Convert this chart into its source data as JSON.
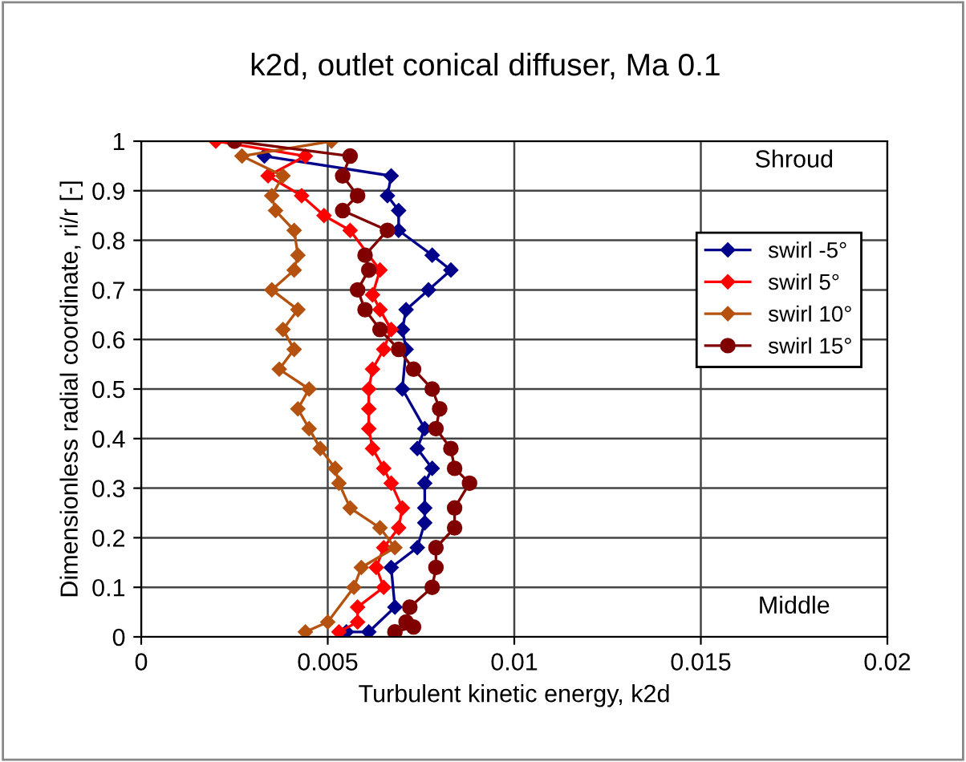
{
  "chart_data": {
    "type": "line",
    "title": "k2d, outlet conical diffuser, Ma 0.1",
    "xlabel": "Turbulent kinetic energy, k2d",
    "ylabel": "Dimensionless radial coordinate, ri/r [-]",
    "xlim": [
      0,
      0.02
    ],
    "xticks": [
      0,
      0.005,
      0.01,
      0.015,
      0.02
    ],
    "ylim": [
      0,
      1
    ],
    "yticks": [
      0,
      0.1,
      0.2,
      0.3,
      0.4,
      0.5,
      0.6,
      0.7,
      0.8,
      0.9,
      1
    ],
    "grid": true,
    "legend": "right",
    "annotations": [
      "Shroud",
      "Middle"
    ],
    "series": [
      {
        "name": "swirl -5°",
        "color": "#00008b",
        "marker": "diamond",
        "x": [
          0.0033,
          0.0067,
          0.0066,
          0.0069,
          0.0069,
          0.0078,
          0.0083,
          0.0077,
          0.0071,
          0.007,
          0.0071,
          0.007,
          0.0076,
          0.0074,
          0.0078,
          0.0076,
          0.0076,
          0.0076,
          0.0074,
          0.0067,
          0.0068,
          0.0061,
          0.0055
        ],
        "values": [
          0.97,
          0.93,
          0.89,
          0.86,
          0.82,
          0.77,
          0.74,
          0.7,
          0.66,
          0.62,
          0.58,
          0.5,
          0.42,
          0.38,
          0.34,
          0.31,
          0.26,
          0.23,
          0.18,
          0.14,
          0.06,
          0.01,
          0.01
        ]
      },
      {
        "name": "swirl 5°",
        "color": "#ff0000",
        "marker": "diamond",
        "x": [
          0.002,
          0.0044,
          0.0034,
          0.0043,
          0.0049,
          0.0056,
          0.0064,
          0.0062,
          0.0064,
          0.0067,
          0.0065,
          0.0062,
          0.0061,
          0.0061,
          0.0061,
          0.0062,
          0.0065,
          0.0067,
          0.007,
          0.0069,
          0.0065,
          0.0063,
          0.0065,
          0.0058,
          0.0058,
          0.0053
        ],
        "values": [
          1.0,
          0.97,
          0.93,
          0.89,
          0.85,
          0.82,
          0.74,
          0.69,
          0.66,
          0.62,
          0.58,
          0.54,
          0.5,
          0.46,
          0.42,
          0.38,
          0.34,
          0.31,
          0.26,
          0.22,
          0.18,
          0.14,
          0.1,
          0.06,
          0.03,
          0.01
        ]
      },
      {
        "name": "swirl 10°",
        "color": "#b5520f",
        "marker": "diamond",
        "x": [
          0.0051,
          0.0027,
          0.0038,
          0.0035,
          0.0036,
          0.0041,
          0.0042,
          0.0041,
          0.0035,
          0.0042,
          0.0038,
          0.0041,
          0.0037,
          0.0045,
          0.0042,
          0.0045,
          0.0048,
          0.0052,
          0.0053,
          0.0056,
          0.0064,
          0.0068,
          0.0059,
          0.0057,
          0.005,
          0.0044
        ],
        "values": [
          1.0,
          0.97,
          0.93,
          0.89,
          0.86,
          0.82,
          0.77,
          0.74,
          0.7,
          0.66,
          0.62,
          0.58,
          0.54,
          0.5,
          0.46,
          0.42,
          0.38,
          0.34,
          0.31,
          0.26,
          0.22,
          0.18,
          0.14,
          0.1,
          0.03,
          0.01
        ]
      },
      {
        "name": "swirl 15°",
        "color": "#800000",
        "marker": "circle",
        "x": [
          0.0025,
          0.0056,
          0.0054,
          0.0058,
          0.0054,
          0.0066,
          0.006,
          0.0061,
          0.0058,
          0.006,
          0.0064,
          0.0069,
          0.0073,
          0.0078,
          0.008,
          0.0079,
          0.0083,
          0.0084,
          0.0088,
          0.0084,
          0.0084,
          0.0079,
          0.0079,
          0.0078,
          0.0072,
          0.0071,
          0.0068,
          0.0073
        ],
        "values": [
          1.0,
          0.97,
          0.93,
          0.89,
          0.86,
          0.82,
          0.77,
          0.74,
          0.7,
          0.66,
          0.62,
          0.58,
          0.54,
          0.5,
          0.46,
          0.42,
          0.38,
          0.34,
          0.31,
          0.26,
          0.22,
          0.18,
          0.14,
          0.1,
          0.06,
          0.03,
          0.01,
          0.02
        ]
      }
    ]
  }
}
